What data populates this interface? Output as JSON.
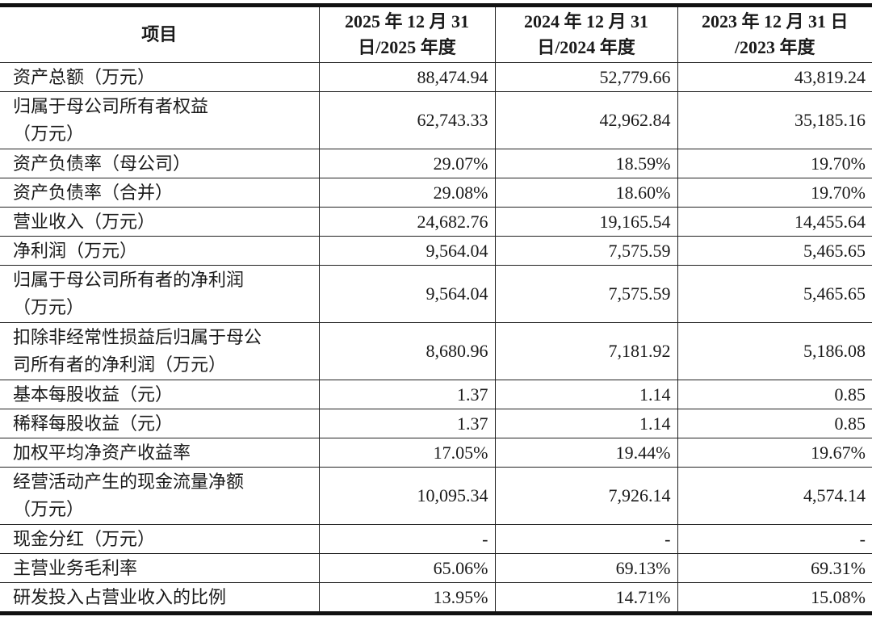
{
  "header": [
    "项目",
    "2025年12月31日/2025年度",
    "2024年12月31日/2024年度",
    "2023年12月31日/2023年度"
  ],
  "header_lines": [
    [
      "项目"
    ],
    [
      "2025 年 12 月 31",
      "日/2025 年度"
    ],
    [
      "2024 年 12 月 31",
      "日/2024 年度"
    ],
    [
      "2023 年 12 月 31 日",
      "/2023 年度"
    ]
  ],
  "rows": [
    {
      "label": [
        "资产总额（万元）"
      ],
      "values": [
        "88,474.94",
        "52,779.66",
        "43,819.24"
      ]
    },
    {
      "label": [
        "归属于母公司所有者权益",
        "（万元）"
      ],
      "values": [
        "62,743.33",
        "42,962.84",
        "35,185.16"
      ]
    },
    {
      "label": [
        "资产负债率（母公司）"
      ],
      "values": [
        "29.07%",
        "18.59%",
        "19.70%"
      ]
    },
    {
      "label": [
        "资产负债率（合并）"
      ],
      "values": [
        "29.08%",
        "18.60%",
        "19.70%"
      ]
    },
    {
      "label": [
        "营业收入（万元）"
      ],
      "values": [
        "24,682.76",
        "19,165.54",
        "14,455.64"
      ]
    },
    {
      "label": [
        "净利润（万元）"
      ],
      "values": [
        "9,564.04",
        "7,575.59",
        "5,465.65"
      ]
    },
    {
      "label": [
        "归属于母公司所有者的净利润",
        "（万元）"
      ],
      "values": [
        "9,564.04",
        "7,575.59",
        "5,465.65"
      ]
    },
    {
      "label": [
        "扣除非经常性损益后归属于母公",
        "司所有者的净利润（万元）"
      ],
      "values": [
        "8,680.96",
        "7,181.92",
        "5,186.08"
      ]
    },
    {
      "label": [
        "基本每股收益（元）"
      ],
      "values": [
        "1.37",
        "1.14",
        "0.85"
      ]
    },
    {
      "label": [
        "稀释每股收益（元）"
      ],
      "values": [
        "1.37",
        "1.14",
        "0.85"
      ]
    },
    {
      "label": [
        "加权平均净资产收益率"
      ],
      "values": [
        "17.05%",
        "19.44%",
        "19.67%"
      ]
    },
    {
      "label": [
        "经营活动产生的现金流量净额",
        "（万元）"
      ],
      "values": [
        "10,095.34",
        "7,926.14",
        "4,574.14"
      ]
    },
    {
      "label": [
        "现金分红（万元）"
      ],
      "values": [
        "-",
        "-",
        "-"
      ]
    },
    {
      "label": [
        "主营业务毛利率"
      ],
      "values": [
        "65.06%",
        "69.13%",
        "69.31%"
      ]
    },
    {
      "label": [
        "研发投入占营业收入的比例"
      ],
      "values": [
        "13.95%",
        "14.71%",
        "15.08%"
      ]
    }
  ]
}
